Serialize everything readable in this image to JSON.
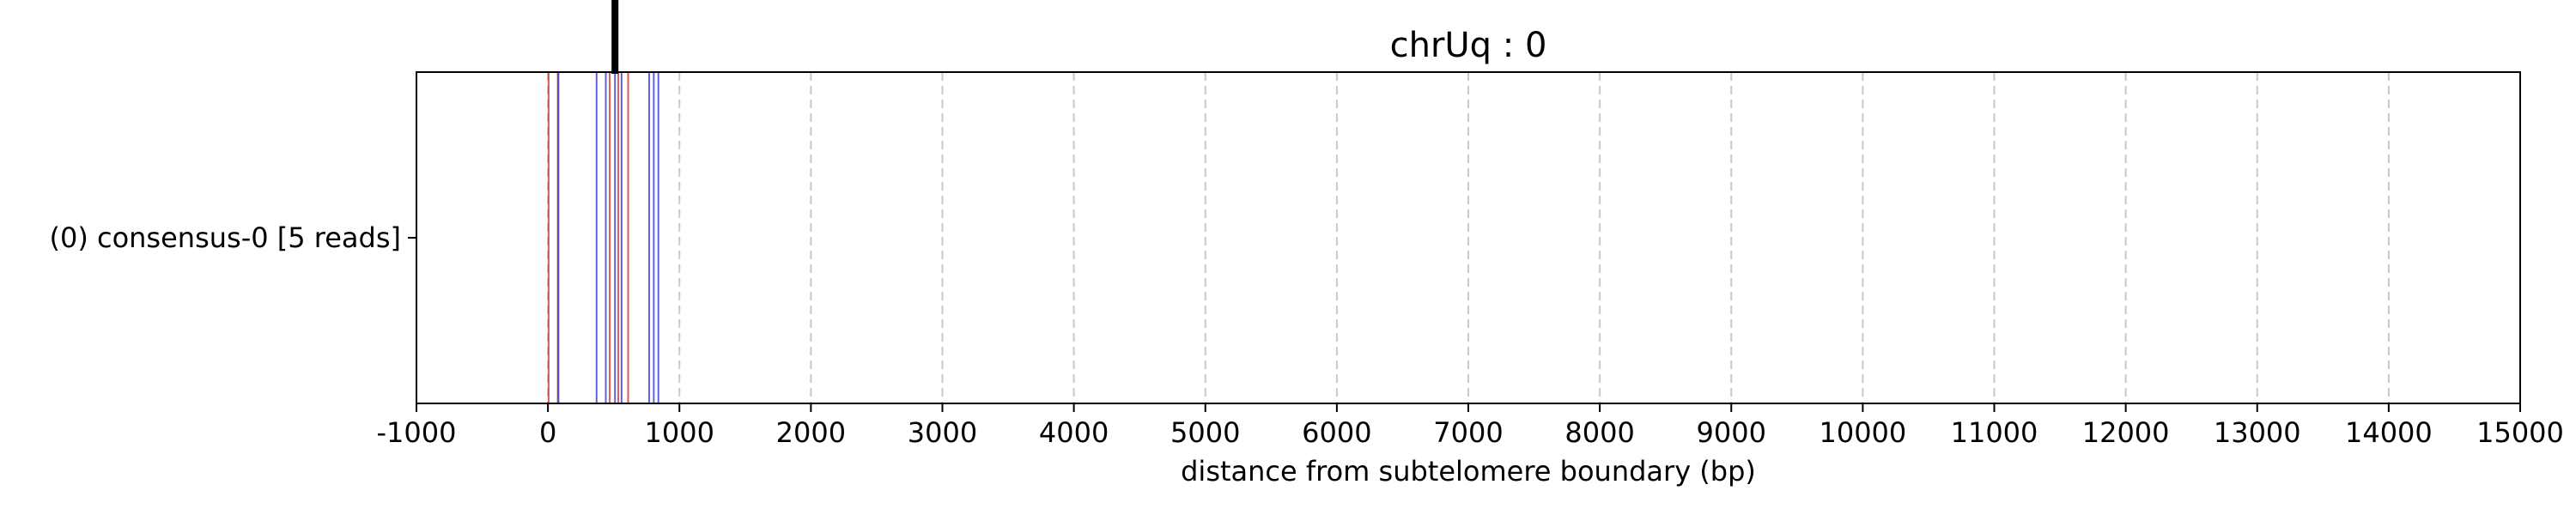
{
  "chart_data": {
    "type": "event-lines",
    "title": "chrUq : 0",
    "xlabel": "distance from subtelomere boundary (bp)",
    "ylabel": "",
    "xlim": [
      -1000,
      15000
    ],
    "x_ticks": [
      -1000,
      0,
      1000,
      2000,
      3000,
      4000,
      5000,
      6000,
      7000,
      8000,
      9000,
      10000,
      11000,
      12000,
      13000,
      14000,
      15000
    ],
    "x_tick_labels": [
      "-1000",
      "0",
      "1000",
      "2000",
      "3000",
      "4000",
      "5000",
      "6000",
      "7000",
      "8000",
      "9000",
      "10000",
      "11000",
      "12000",
      "13000",
      "14000",
      "15000"
    ],
    "grid": "vertical dashed gray at x ticks",
    "rows": [
      {
        "label": "(0) consensus-0 [5 reads]",
        "red_events": [
          5,
          75,
          470,
          535,
          610
        ],
        "blue_events": [
          80,
          370,
          440,
          510,
          560,
          770,
          805,
          840
        ]
      }
    ],
    "boundary_marker": {
      "x": 510,
      "color": "#000000"
    },
    "colors": {
      "red": "#c62828",
      "blue": "#2b2bd9",
      "grid": "#c8c8c8"
    }
  }
}
